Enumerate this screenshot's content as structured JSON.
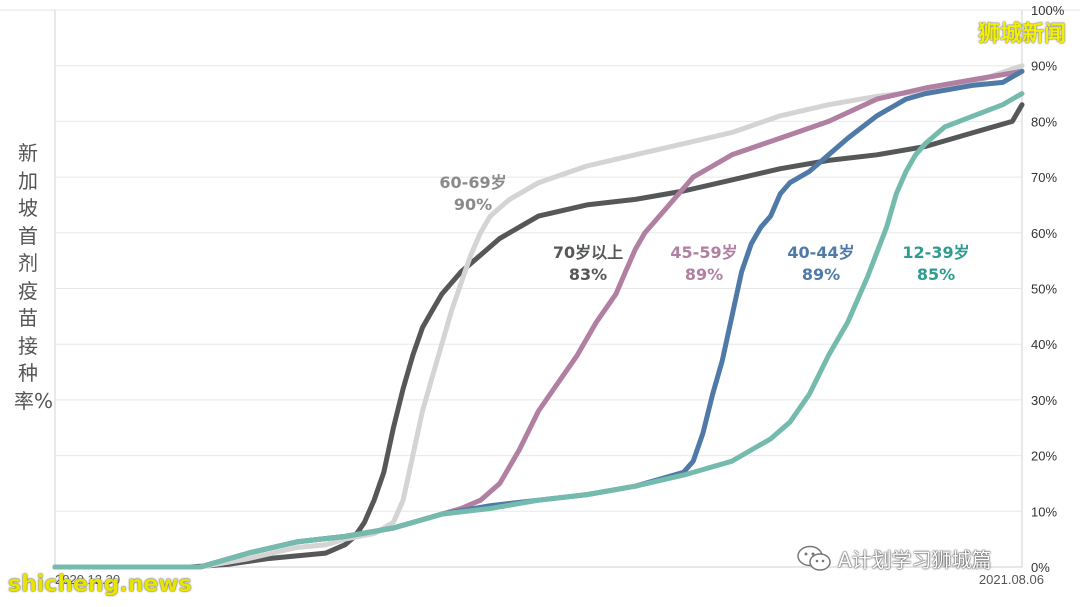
{
  "chart_data": {
    "type": "line",
    "ylabel": "新加坡首剂疫苗接种率%",
    "ylim": [
      0,
      100
    ],
    "yticks": [
      "0%",
      "10%",
      "20%",
      "30%",
      "40%",
      "50%",
      "60%",
      "70%",
      "80%",
      "90%",
      "100%"
    ],
    "xticks": [
      "2020.12.30",
      "2021.08.06"
    ],
    "xlim": [
      0,
      100
    ],
    "grid": true,
    "series": [
      {
        "key": "s70",
        "name": "70岁以上",
        "final": "83%",
        "color": "#555759",
        "points": [
          [
            0,
            0
          ],
          [
            14,
            0
          ],
          [
            18,
            0.5
          ],
          [
            22,
            1.5
          ],
          [
            25,
            2
          ],
          [
            28,
            2.5
          ],
          [
            30,
            4
          ],
          [
            31,
            5.5
          ],
          [
            32,
            8
          ],
          [
            33,
            12
          ],
          [
            34,
            17
          ],
          [
            35,
            25
          ],
          [
            36,
            32
          ],
          [
            37,
            38
          ],
          [
            38,
            43
          ],
          [
            39,
            46
          ],
          [
            40,
            49
          ],
          [
            42,
            53
          ],
          [
            44,
            56
          ],
          [
            46,
            59
          ],
          [
            48,
            61
          ],
          [
            50,
            63
          ],
          [
            55,
            65
          ],
          [
            60,
            66
          ],
          [
            65,
            67.5
          ],
          [
            70,
            69.5
          ],
          [
            75,
            71.5
          ],
          [
            80,
            73
          ],
          [
            85,
            74
          ],
          [
            90,
            75.5
          ],
          [
            95,
            78
          ],
          [
            99,
            80
          ],
          [
            100,
            83
          ]
        ]
      },
      {
        "key": "s60",
        "name": "60-69岁",
        "final": "90%",
        "color": "#d4d4d4",
        "points": [
          [
            0,
            0
          ],
          [
            15,
            0
          ],
          [
            20,
            1.5
          ],
          [
            25,
            3.5
          ],
          [
            28,
            4
          ],
          [
            30,
            5
          ],
          [
            33,
            6
          ],
          [
            35,
            8
          ],
          [
            36,
            12
          ],
          [
            37,
            20
          ],
          [
            38,
            28
          ],
          [
            39,
            34
          ],
          [
            40,
            40
          ],
          [
            41,
            46
          ],
          [
            42,
            51
          ],
          [
            43,
            56
          ],
          [
            44,
            60
          ],
          [
            45,
            63
          ],
          [
            47,
            66
          ],
          [
            50,
            69
          ],
          [
            55,
            72
          ],
          [
            60,
            74
          ],
          [
            65,
            76
          ],
          [
            70,
            78
          ],
          [
            75,
            81
          ],
          [
            80,
            83
          ],
          [
            85,
            84.5
          ],
          [
            90,
            85.5
          ],
          [
            95,
            87
          ],
          [
            100,
            90
          ]
        ]
      },
      {
        "key": "s45",
        "name": "45-59岁",
        "final": "89%",
        "color": "#b07fa2",
        "points": [
          [
            0,
            0
          ],
          [
            15,
            0
          ],
          [
            20,
            2.5
          ],
          [
            25,
            4.5
          ],
          [
            30,
            5.5
          ],
          [
            35,
            7
          ],
          [
            40,
            9.5
          ],
          [
            42,
            10.5
          ],
          [
            44,
            12
          ],
          [
            46,
            15
          ],
          [
            48,
            21
          ],
          [
            50,
            28
          ],
          [
            52,
            33
          ],
          [
            54,
            38
          ],
          [
            56,
            44
          ],
          [
            58,
            49
          ],
          [
            59,
            53
          ],
          [
            60,
            57
          ],
          [
            61,
            60
          ],
          [
            62,
            62
          ],
          [
            64,
            66
          ],
          [
            66,
            70
          ],
          [
            68,
            72
          ],
          [
            70,
            74
          ],
          [
            75,
            77
          ],
          [
            80,
            80
          ],
          [
            85,
            84
          ],
          [
            90,
            86
          ],
          [
            95,
            87.5
          ],
          [
            100,
            89
          ]
        ]
      },
      {
        "key": "s40",
        "name": "40-44岁",
        "final": "89%",
        "color": "#4f7aa7",
        "points": [
          [
            0,
            0
          ],
          [
            15,
            0
          ],
          [
            20,
            2.5
          ],
          [
            25,
            4.5
          ],
          [
            30,
            5.5
          ],
          [
            35,
            7
          ],
          [
            40,
            9.5
          ],
          [
            45,
            11
          ],
          [
            50,
            12
          ],
          [
            55,
            13
          ],
          [
            60,
            14.5
          ],
          [
            63,
            16
          ],
          [
            65,
            17
          ],
          [
            66,
            19
          ],
          [
            67,
            24
          ],
          [
            68,
            31
          ],
          [
            69,
            37
          ],
          [
            70,
            45
          ],
          [
            71,
            53
          ],
          [
            72,
            58
          ],
          [
            73,
            61
          ],
          [
            74,
            63
          ],
          [
            75,
            67
          ],
          [
            76,
            69
          ],
          [
            78,
            71
          ],
          [
            80,
            74
          ],
          [
            82,
            77
          ],
          [
            85,
            81
          ],
          [
            88,
            84
          ],
          [
            90,
            85
          ],
          [
            95,
            86.5
          ],
          [
            98,
            87
          ],
          [
            100,
            89
          ]
        ]
      },
      {
        "key": "s12",
        "name": "12-39岁",
        "final": "85%",
        "color": "#74bbae",
        "points": [
          [
            0,
            0
          ],
          [
            15,
            0
          ],
          [
            20,
            2.5
          ],
          [
            25,
            4.5
          ],
          [
            30,
            5.5
          ],
          [
            35,
            7
          ],
          [
            40,
            9.5
          ],
          [
            45,
            10.5
          ],
          [
            50,
            12
          ],
          [
            55,
            13
          ],
          [
            60,
            14.5
          ],
          [
            65,
            16.5
          ],
          [
            70,
            19
          ],
          [
            72,
            21
          ],
          [
            74,
            23
          ],
          [
            76,
            26
          ],
          [
            78,
            31
          ],
          [
            80,
            38
          ],
          [
            82,
            44
          ],
          [
            84,
            52
          ],
          [
            86,
            61
          ],
          [
            87,
            67
          ],
          [
            88,
            71
          ],
          [
            89,
            74
          ],
          [
            90,
            76
          ],
          [
            92,
            79
          ],
          [
            95,
            81
          ],
          [
            98,
            83
          ],
          [
            99,
            84
          ],
          [
            100,
            85
          ]
        ]
      }
    ]
  },
  "branding": {
    "top_watermark": "狮城新闻",
    "bottom_watermark": "shicheng.news",
    "wechat_label": "A计划学习狮城篇",
    "wechat_icon": "wechat-icon"
  }
}
